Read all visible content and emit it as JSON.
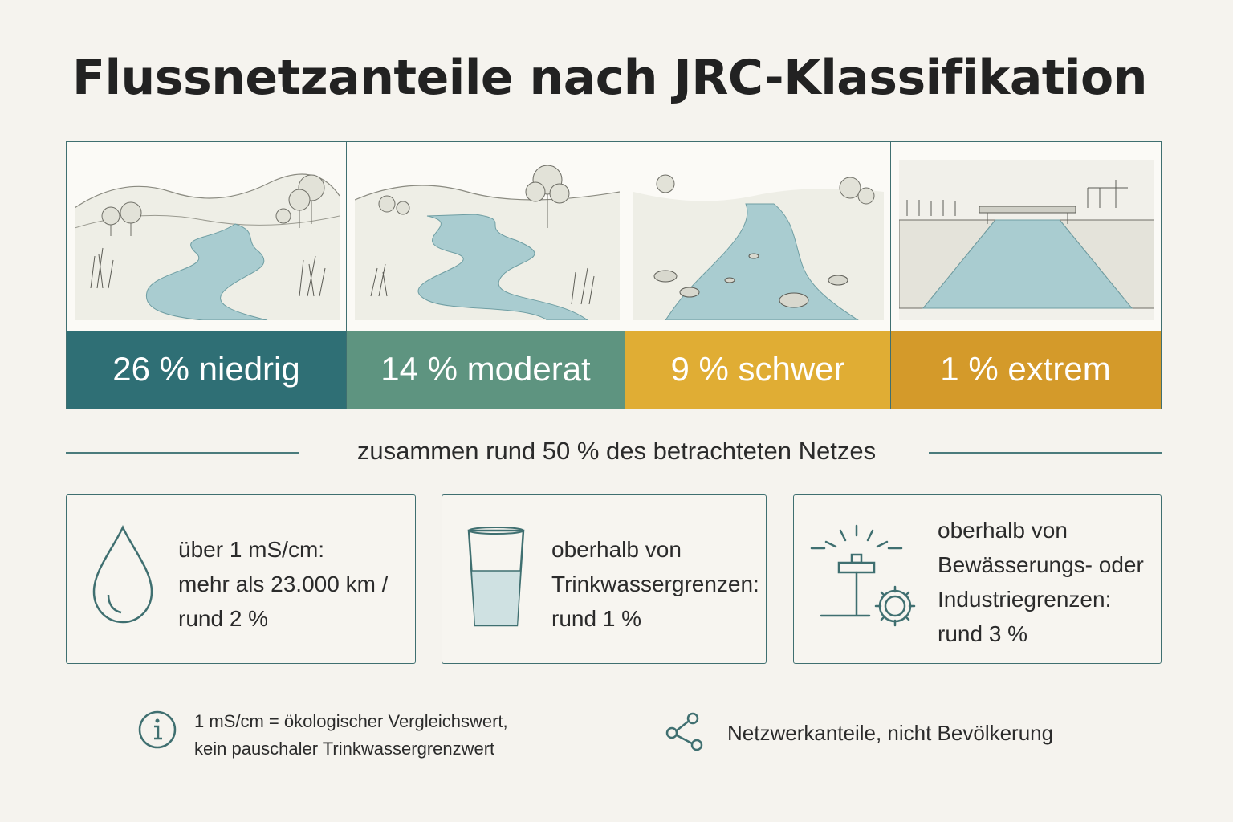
{
  "title": "Flussnetzanteile nach JRC-Klassifikation",
  "categories": [
    {
      "label": "26 % niedrig",
      "share_percent": 26,
      "color": "#2f6f75",
      "icon": "natural-meandering-river-illustration"
    },
    {
      "label": "14 % moderat",
      "share_percent": 14,
      "color": "#5e9480",
      "icon": "meandering-river-with-bushes-illustration"
    },
    {
      "label": "9 % schwer",
      "share_percent": 9,
      "color": "#e0ad34",
      "icon": "rocky-river-illustration"
    },
    {
      "label": "1 % extrem",
      "share_percent": 1,
      "color": "#d49a2a",
      "icon": "canalized-river-with-bridge-illustration"
    }
  ],
  "summary": "zusammen rund 50 % des betrachteten Netzes",
  "facts": [
    {
      "icon": "water-drop-icon",
      "lines": [
        "über 1 mS/cm:",
        "mehr als 23.000 km /",
        "rund 2 %"
      ]
    },
    {
      "icon": "drinking-glass-icon",
      "lines": [
        "oberhalb von",
        "Trinkwassergrenzen:",
        "rund 1 %"
      ]
    },
    {
      "icon": "sprinkler-gear-icon",
      "lines": [
        "oberhalb von",
        "Bewässerungs- oder",
        "Industriegrenzen:",
        "rund 3 %"
      ]
    }
  ],
  "notes": [
    {
      "icon": "info-icon",
      "lines": [
        "1 mS/cm = ökologischer Vergleichswert,",
        "kein pauschaler Trinkwassergrenzwert"
      ]
    },
    {
      "icon": "network-icon",
      "lines": [
        "Netzwerkanteile, nicht Bevölkerung"
      ]
    }
  ],
  "colors": {
    "accent": "#3f6f70",
    "background": "#f5f3ee"
  }
}
